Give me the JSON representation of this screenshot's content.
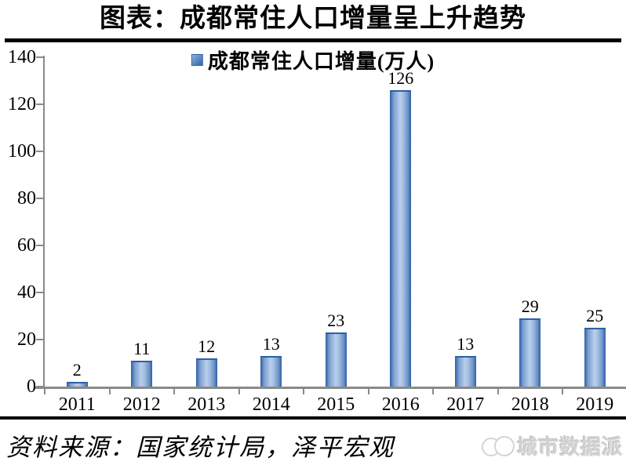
{
  "title": "图表：成都常住人口增量呈上升趋势",
  "legend": {
    "label": "成都常住人口增量(万人)",
    "swatch_color": "#4f81bd"
  },
  "source_note": "资料来源：国家统计局，泽平宏观",
  "watermark": {
    "text": "城市数据派"
  },
  "colors": {
    "bar_dark": "#2d5fa6",
    "bar_light": "#b9cfec",
    "axis": "#8a8a8a",
    "rule": "#000000"
  },
  "chart_data": {
    "type": "bar",
    "title": "图表：成都常住人口增量呈上升趋势",
    "categories": [
      "2011",
      "2012",
      "2013",
      "2014",
      "2015",
      "2016",
      "2017",
      "2018",
      "2019"
    ],
    "values": [
      2,
      11,
      12,
      13,
      23,
      126,
      13,
      29,
      25
    ],
    "series_name": "成都常住人口增量(万人)",
    "xlabel": "",
    "ylabel": "",
    "ylim": [
      0,
      140
    ],
    "yticks": [
      0,
      20,
      40,
      60,
      80,
      100,
      120,
      140
    ],
    "grid": false,
    "data_labels": true,
    "legend_position": "top-center"
  }
}
